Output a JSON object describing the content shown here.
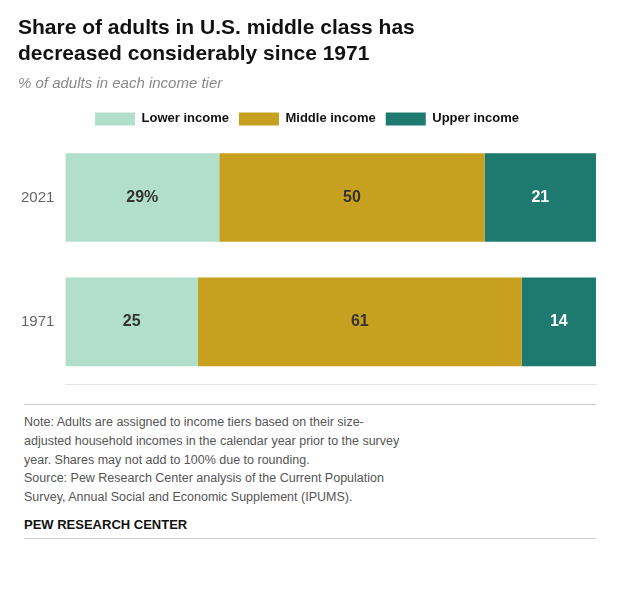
{
  "chart_data": {
    "type": "bar",
    "orientation": "horizontal",
    "stacked": true,
    "title": "Share of adults in U.S. middle class has\ndecreased considerably since 1971",
    "subtitle": "% of adults in each income tier",
    "categories": [
      "2021",
      "1971"
    ],
    "series": [
      {
        "name": "Lower income",
        "color": "#b2dfcc",
        "values": [
          29,
          25
        ],
        "value_labels": [
          "29%",
          "25"
        ]
      },
      {
        "name": "Middle income",
        "color": "#c8a020",
        "values": [
          50,
          61
        ],
        "value_labels": [
          "50",
          "61"
        ]
      },
      {
        "name": "Upper income",
        "color": "#1e7a6e",
        "values": [
          21,
          14
        ],
        "value_labels": [
          "21",
          "14"
        ]
      }
    ],
    "xlim": [
      0,
      100
    ],
    "data_labels": true,
    "tick_labels": "y",
    "grid": false,
    "legend": "top",
    "annotations": [
      "Note: Adults are assigned to income tiers based on their size-",
      "adjusted household incomes in the calendar year prior to the survey",
      "year. Shares may not add to 100% due to rounding.",
      "Source: Pew Research Center analysis of the Current Population",
      "Survey, Annual Social and Economic Supplement (IPUMS)."
    ],
    "source": "PEW RESEARCH CENTER"
  }
}
